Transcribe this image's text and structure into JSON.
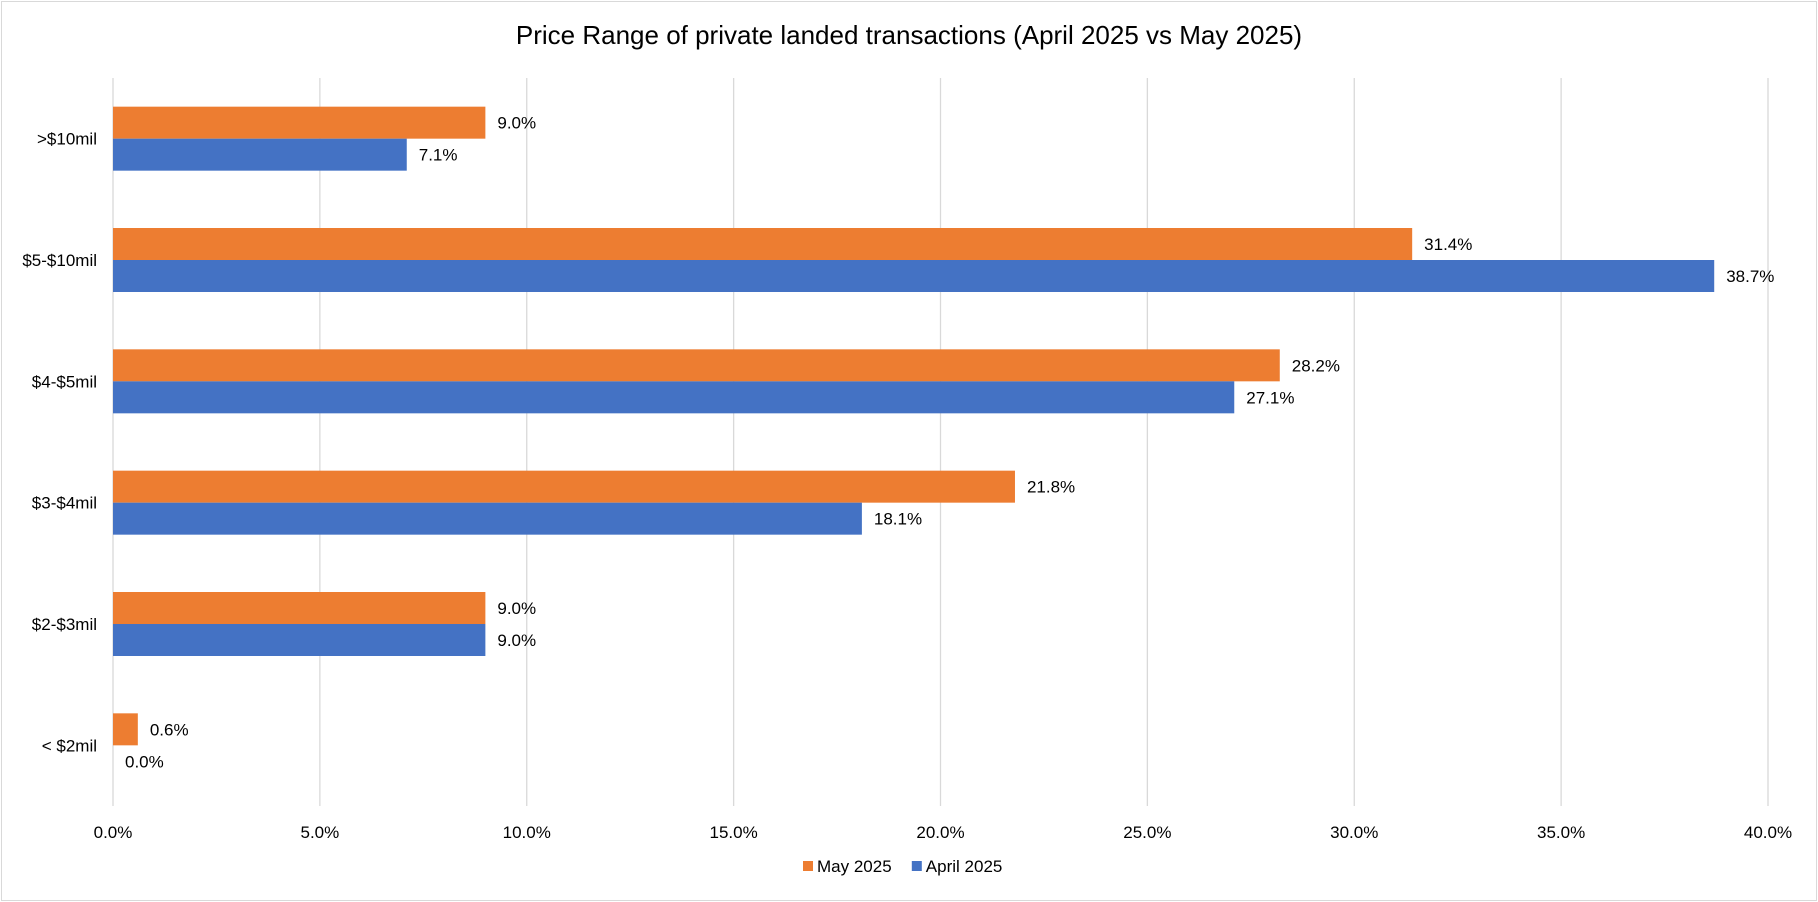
{
  "chart_data": {
    "type": "bar",
    "orientation": "horizontal",
    "title": "Price Range of private landed transactions (April 2025 vs May 2025)",
    "xlabel": "",
    "ylabel": "",
    "categories": [
      ">$10mil",
      "$5-$10mil",
      "$4-$5mil",
      "$3-$4mil",
      "$2-$3mil",
      "< $2mil"
    ],
    "series": [
      {
        "name": "May 2025",
        "color": "#ED7D31",
        "values": [
          9.0,
          31.4,
          28.2,
          21.8,
          9.0,
          0.6
        ],
        "labels": [
          "9.0%",
          "31.4%",
          "28.2%",
          "21.8%",
          "9.0%",
          "0.6%"
        ]
      },
      {
        "name": "April 2025",
        "color": "#4472C4",
        "values": [
          7.1,
          38.7,
          27.1,
          18.1,
          9.0,
          0.0
        ],
        "labels": [
          "7.1%",
          "38.7%",
          "27.1%",
          "18.1%",
          "9.0%",
          "0.0%"
        ]
      }
    ],
    "xlim": [
      0,
      40
    ],
    "xticks": [
      0,
      5,
      10,
      15,
      20,
      25,
      30,
      35,
      40
    ],
    "xtick_labels": [
      "0.0%",
      "5.0%",
      "10.0%",
      "15.0%",
      "20.0%",
      "25.0%",
      "30.0%",
      "35.0%",
      "40.0%"
    ],
    "grid": "vertical",
    "legend_position": "bottom"
  }
}
